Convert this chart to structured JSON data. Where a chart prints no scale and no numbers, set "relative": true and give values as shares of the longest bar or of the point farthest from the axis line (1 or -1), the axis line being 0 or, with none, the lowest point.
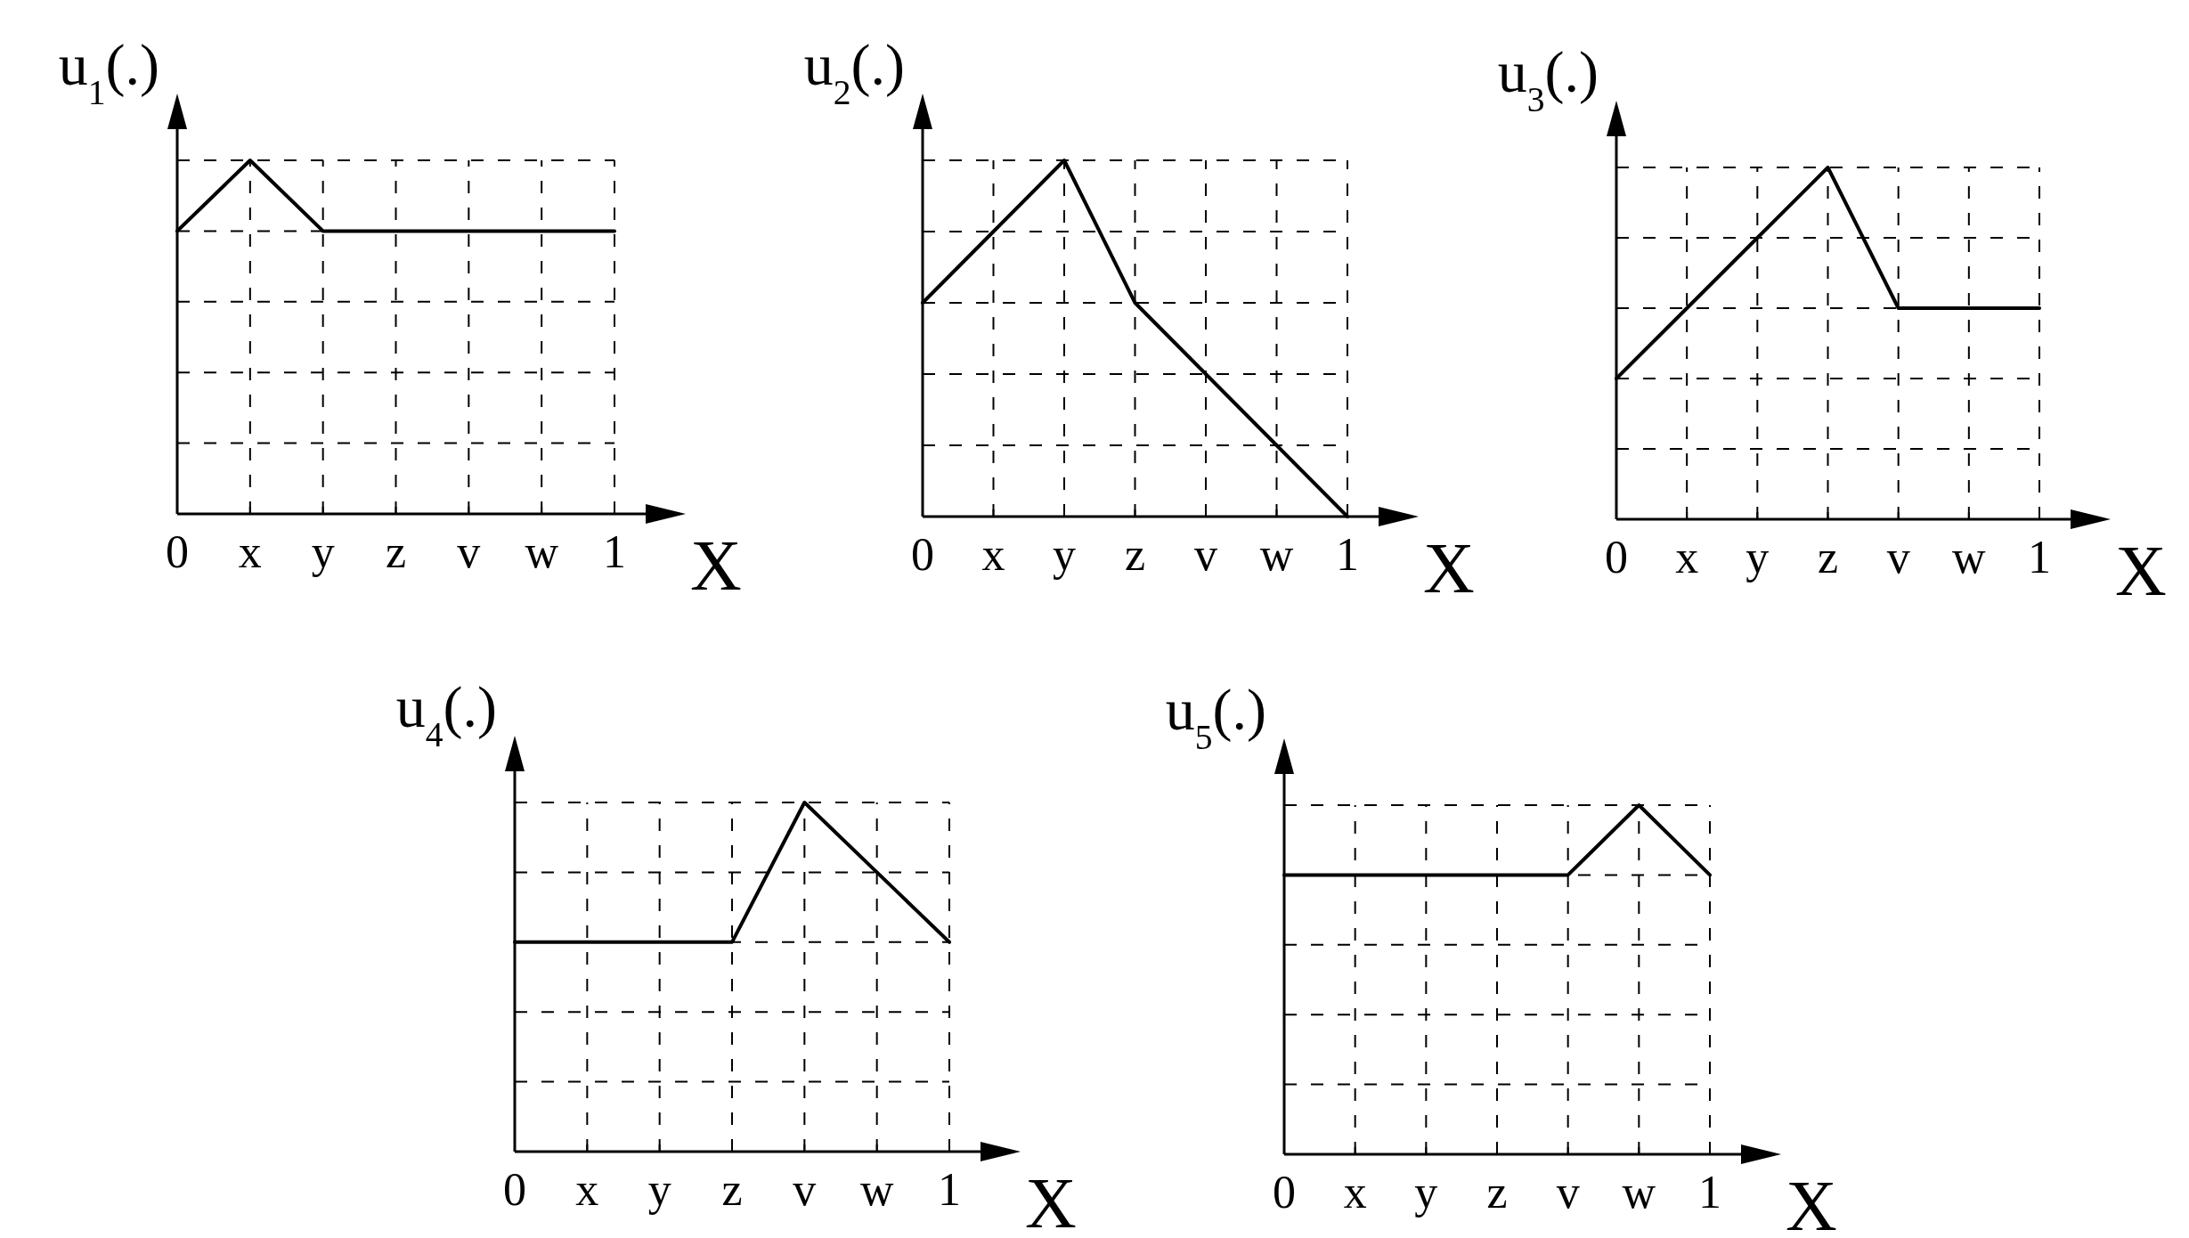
{
  "chart_data": [
    {
      "type": "line",
      "ylabel": "u$_{1}$(.)",
      "xlabel": "X",
      "categories": [
        "0",
        "x",
        "y",
        "z",
        "v",
        "w",
        "1"
      ],
      "relative": true,
      "grid": true,
      "series": [
        {
          "color": "#000000",
          "values": [
            0.8,
            1,
            0.8,
            0.8,
            0.8,
            0.8,
            0.8
          ]
        }
      ]
    },
    {
      "type": "line",
      "ylabel": "u$_{2}$(.)",
      "xlabel": "X",
      "categories": [
        "0",
        "x",
        "y",
        "z",
        "v",
        "w",
        "1"
      ],
      "relative": true,
      "grid": true,
      "series": [
        {
          "color": "#000000",
          "values": [
            0.6,
            0.8,
            1,
            0.6,
            0.4,
            0.2,
            0
          ]
        }
      ]
    },
    {
      "type": "line",
      "ylabel": "u$_{3}$(.)",
      "xlabel": "X",
      "categories": [
        "0",
        "x",
        "y",
        "z",
        "v",
        "w",
        "1"
      ],
      "relative": true,
      "grid": true,
      "series": [
        {
          "color": "#000000",
          "values": [
            0.4,
            0.6,
            0.8,
            1,
            0.6,
            0.6,
            0.6
          ]
        }
      ]
    },
    {
      "type": "line",
      "ylabel": "u$_{4}$(.)",
      "xlabel": "X",
      "categories": [
        "0",
        "x",
        "y",
        "z",
        "v",
        "w",
        "1"
      ],
      "relative": true,
      "grid": true,
      "series": [
        {
          "color": "#000000",
          "values": [
            0.6,
            0.6,
            0.6,
            0.6,
            1,
            0.8,
            0.6
          ]
        }
      ]
    },
    {
      "type": "line",
      "ylabel": "u$_{5}$(.)",
      "xlabel": "X",
      "categories": [
        "0",
        "x",
        "y",
        "z",
        "v",
        "w",
        "1"
      ],
      "relative": true,
      "grid": true,
      "series": [
        {
          "color": "#000000",
          "values": [
            0.8,
            0.8,
            0.8,
            0.8,
            0.8,
            1,
            0.8
          ]
        }
      ]
    }
  ]
}
